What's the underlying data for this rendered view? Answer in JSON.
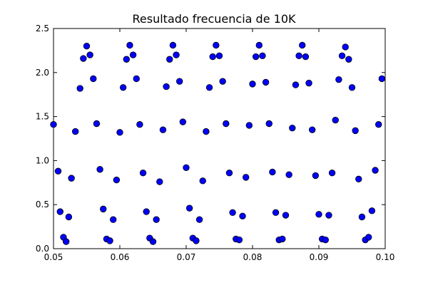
{
  "chart_data": {
    "type": "scatter",
    "title": "Resultado frecuencia de 10K",
    "xlabel": "",
    "ylabel": "",
    "xlim": [
      0.05,
      0.1
    ],
    "ylim": [
      0.0,
      2.5
    ],
    "x_ticks": [
      "0.05",
      "0.06",
      "0.07",
      "0.08",
      "0.09",
      "0.10"
    ],
    "y_ticks": [
      "0.0",
      "0.5",
      "1.0",
      "1.5",
      "2.0",
      "2.5"
    ],
    "grid": false,
    "legend": "none",
    "marker_color": "#0000ff",
    "marker_edge_color": "#000000",
    "series": [
      {
        "x": [
          0.05,
          0.0507,
          0.051,
          0.0515,
          0.0519,
          0.0523,
          0.0527,
          0.0533,
          0.054,
          0.0545,
          0.055,
          0.0555,
          0.056,
          0.0565,
          0.057,
          0.0575,
          0.058,
          0.0585,
          0.059,
          0.0595,
          0.06,
          0.0605,
          0.061,
          0.0615,
          0.062,
          0.0625,
          0.063,
          0.0635,
          0.064,
          0.0645,
          0.065,
          0.0655,
          0.066,
          0.0665,
          0.067,
          0.0675,
          0.068,
          0.0685,
          0.069,
          0.0695,
          0.07,
          0.0705,
          0.071,
          0.0715,
          0.072,
          0.0725,
          0.073,
          0.0735,
          0.074,
          0.0745,
          0.075,
          0.0755,
          0.076,
          0.0765,
          0.077,
          0.0775,
          0.078,
          0.0785,
          0.079,
          0.0795,
          0.08,
          0.0805,
          0.081,
          0.0815,
          0.082,
          0.0825,
          0.083,
          0.0835,
          0.084,
          0.0845,
          0.085,
          0.0855,
          0.086,
          0.0865,
          0.087,
          0.0875,
          0.088,
          0.0885,
          0.089,
          0.0895,
          0.09,
          0.0905,
          0.091,
          0.0915,
          0.092,
          0.0925,
          0.093,
          0.0935,
          0.094,
          0.0945,
          0.095,
          0.0955,
          0.096,
          0.0965,
          0.097,
          0.0975,
          0.098,
          0.0985,
          0.099,
          0.0995
        ],
        "y": [
          1.41,
          0.88,
          0.42,
          0.13,
          0.08,
          0.36,
          0.8,
          1.33,
          1.82,
          2.16,
          2.3,
          2.2,
          1.93,
          1.42,
          0.9,
          0.45,
          0.11,
          0.09,
          0.33,
          0.78,
          1.32,
          1.83,
          2.15,
          2.31,
          2.2,
          1.93,
          1.41,
          0.86,
          0.42,
          0.12,
          0.08,
          0.33,
          0.76,
          1.35,
          1.84,
          2.15,
          2.31,
          2.2,
          1.9,
          1.44,
          0.92,
          0.46,
          0.12,
          0.09,
          0.33,
          0.77,
          1.33,
          1.83,
          2.18,
          2.31,
          2.19,
          1.9,
          1.42,
          0.86,
          0.41,
          0.11,
          0.1,
          0.37,
          0.81,
          1.4,
          1.87,
          2.18,
          2.31,
          2.19,
          1.89,
          1.42,
          0.87,
          0.41,
          0.1,
          0.11,
          0.38,
          0.84,
          1.37,
          1.86,
          2.19,
          2.31,
          2.18,
          1.88,
          1.35,
          0.83,
          0.39,
          0.11,
          0.1,
          0.38,
          0.86,
          1.46,
          1.92,
          2.19,
          2.29,
          2.15,
          1.83,
          1.34,
          0.79,
          0.36,
          0.1,
          0.13,
          0.43,
          0.89,
          1.41,
          1.93
        ]
      }
    ]
  }
}
